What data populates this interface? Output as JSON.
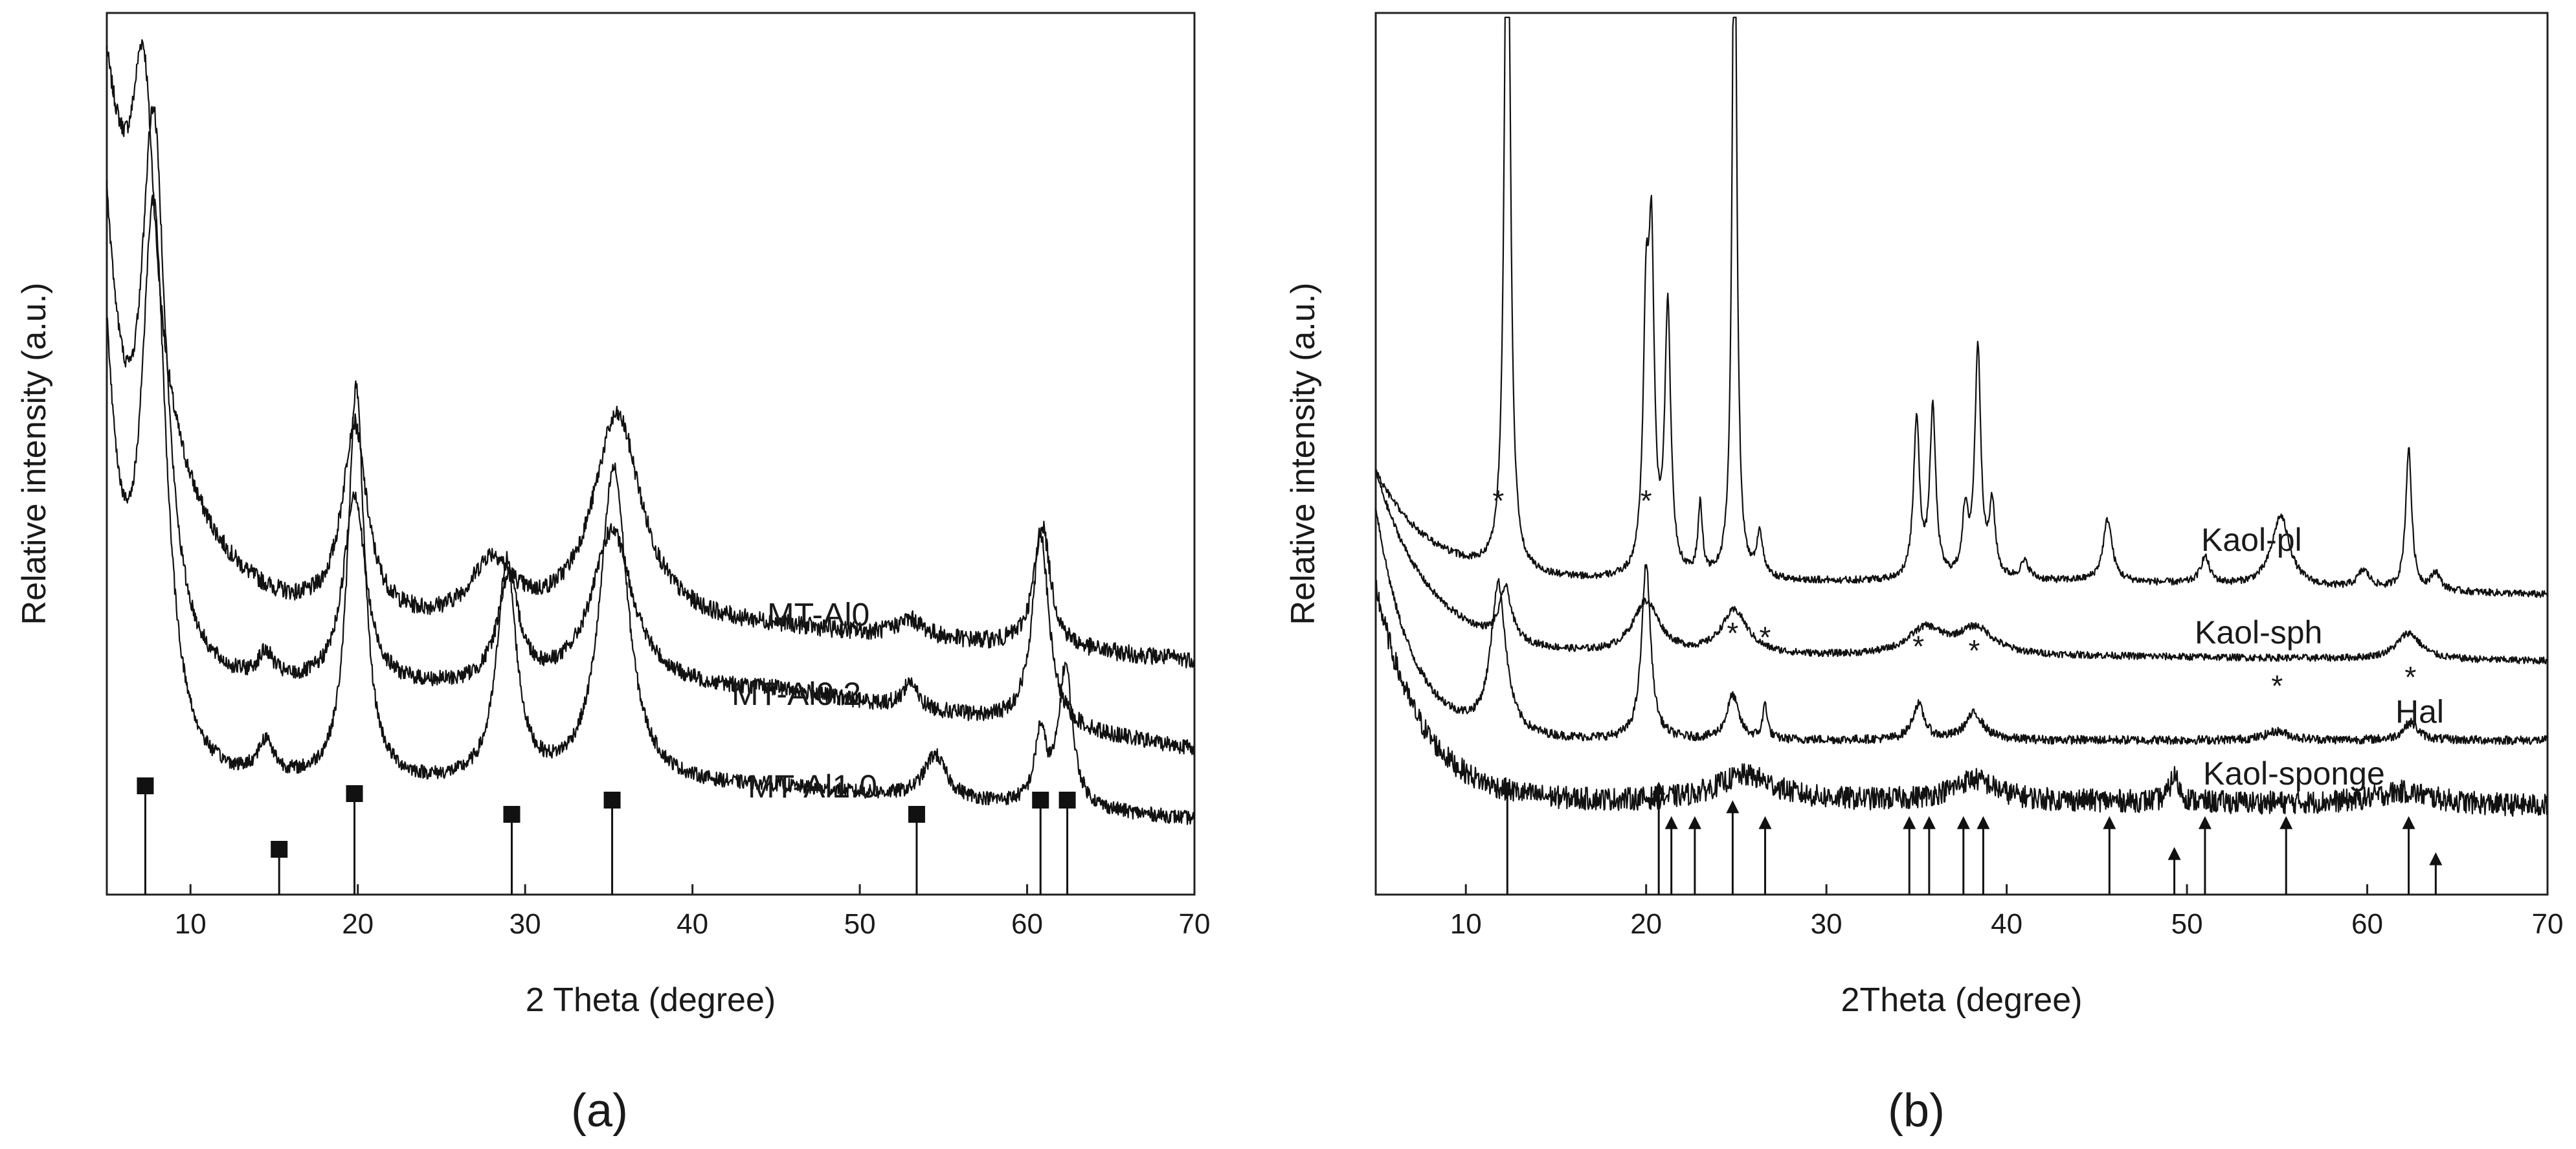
{
  "figure": {
    "panel_a_label": "(a)",
    "panel_b_label": "(b)"
  },
  "chart_data": [
    {
      "type": "line",
      "panel": "a",
      "xlabel": "2 Theta (degree)",
      "ylabel": "Relative intensity (a.u.)",
      "xlim": [
        5,
        70
      ],
      "x_ticks": [
        10,
        20,
        30,
        40,
        50,
        60,
        70
      ],
      "series": [
        {
          "name": "MT-Al0",
          "baseline": 0.3,
          "start": 0.92,
          "decay": 3.5,
          "end": 0.265,
          "noise": 0.01,
          "peaks": [
            [
              7.2,
              0.33,
              0.8
            ],
            [
              19.8,
              0.22,
              0.9
            ],
            [
              28.0,
              0.07,
              1.5
            ],
            [
              35.5,
              0.24,
              1.8
            ],
            [
              53.0,
              0.02,
              1.0
            ],
            [
              60.9,
              0.14,
              0.6
            ]
          ]
        },
        {
          "name": "MT-Al0.2",
          "baseline": 0.23,
          "start": 0.75,
          "decay": 1.5,
          "end": 0.165,
          "noise": 0.009,
          "peaks": [
            [
              7.8,
              0.58,
              0.9
            ],
            [
              14.5,
              0.03,
              0.6
            ],
            [
              19.8,
              0.22,
              0.8
            ],
            [
              29.0,
              0.12,
              0.8
            ],
            [
              35.2,
              0.18,
              1.5
            ],
            [
              53.0,
              0.03,
              0.5
            ],
            [
              60.8,
              0.22,
              0.6
            ]
          ]
        },
        {
          "name": "MT-Al1.0",
          "baseline": 0.12,
          "start": 0.6,
          "decay": 1.2,
          "end": 0.085,
          "noise": 0.008,
          "peaks": [
            [
              7.8,
              0.62,
              0.9
            ],
            [
              14.5,
              0.04,
              0.6
            ],
            [
              19.9,
              0.45,
              0.6
            ],
            [
              28.9,
              0.25,
              0.7
            ],
            [
              35.3,
              0.36,
              1.0
            ],
            [
              54.5,
              0.05,
              0.8
            ],
            [
              60.8,
              0.08,
              0.4
            ],
            [
              62.3,
              0.16,
              0.5
            ]
          ]
        }
      ],
      "reference_lines": [
        {
          "x": 7.3,
          "h": 0.84
        },
        {
          "x": 15.3,
          "h": 0.35
        },
        {
          "x": 19.8,
          "h": 0.78
        },
        {
          "x": 29.2,
          "h": 0.62
        },
        {
          "x": 35.2,
          "h": 0.73
        },
        {
          "x": 53.4,
          "h": 0.62
        },
        {
          "x": 60.8,
          "h": 0.73
        },
        {
          "x": 62.4,
          "h": 0.73
        }
      ]
    },
    {
      "type": "line",
      "panel": "b",
      "xlabel": "2Theta (degree)",
      "ylabel": "Relative intensity (a.u.)",
      "xlim": [
        5,
        70
      ],
      "x_ticks": [
        10,
        20,
        30,
        40,
        50,
        60,
        70
      ],
      "series": [
        {
          "name": "Kaol-pl",
          "baseline": 0.355,
          "start": 0.48,
          "decay": 3.0,
          "end": 0.34,
          "noise": 0.004,
          "peaks": [
            [
              12.3,
              0.95,
              0.18
            ],
            [
              20.0,
              0.28,
              0.2
            ],
            [
              20.3,
              0.33,
              0.18
            ],
            [
              21.2,
              0.3,
              0.2
            ],
            [
              23.0,
              0.08,
              0.15
            ],
            [
              24.9,
              0.85,
              0.15
            ],
            [
              26.3,
              0.05,
              0.2
            ],
            [
              35.0,
              0.18,
              0.2
            ],
            [
              35.9,
              0.19,
              0.2
            ],
            [
              37.7,
              0.07,
              0.2
            ],
            [
              38.4,
              0.26,
              0.2
            ],
            [
              39.2,
              0.08,
              0.2
            ],
            [
              41.0,
              0.02,
              0.3
            ],
            [
              45.6,
              0.07,
              0.3
            ],
            [
              51.0,
              0.03,
              0.3
            ],
            [
              55.2,
              0.08,
              0.6
            ],
            [
              59.8,
              0.02,
              0.4
            ],
            [
              62.3,
              0.16,
              0.2
            ],
            [
              63.8,
              0.02,
              0.3
            ]
          ]
        },
        {
          "name": "Kaol-sph",
          "baseline": 0.27,
          "start": 0.48,
          "decay": 3.0,
          "end": 0.265,
          "noise": 0.004,
          "peaks": [
            [
              12.2,
              0.06,
              0.4
            ],
            [
              20.0,
              0.06,
              0.9
            ],
            [
              24.9,
              0.05,
              0.9
            ],
            [
              35.5,
              0.03,
              1.2
            ],
            [
              38.3,
              0.03,
              1.2
            ],
            [
              62.3,
              0.03,
              0.8
            ]
          ]
        },
        {
          "name": "Hal",
          "baseline": 0.175,
          "start": 0.44,
          "decay": 2.0,
          "end": 0.175,
          "noise": 0.005,
          "peaks": [
            [
              11.8,
              0.17,
              0.5
            ],
            [
              20.0,
              0.2,
              0.3
            ],
            [
              24.8,
              0.05,
              0.4
            ],
            [
              26.6,
              0.04,
              0.15
            ],
            [
              35.1,
              0.04,
              0.4
            ],
            [
              38.2,
              0.03,
              0.6
            ],
            [
              55.0,
              0.01,
              0.8
            ],
            [
              62.4,
              0.02,
              0.5
            ]
          ]
        },
        {
          "name": "Kaol-sponge",
          "baseline": 0.105,
          "start": 0.35,
          "decay": 2.5,
          "end": 0.1,
          "noise": 0.013,
          "peaks": [
            [
              25.5,
              0.03,
              2.0
            ],
            [
              38.2,
              0.025,
              1.5
            ],
            [
              49.3,
              0.03,
              0.3
            ],
            [
              62.0,
              0.015,
              2.0
            ]
          ]
        }
      ],
      "annotations": {
        "asterisk_symbol": "*",
        "asterisk_positions": [
          {
            "x": 11.8,
            "y": 0.435
          },
          {
            "x": 20.0,
            "y": 0.435
          },
          {
            "x": 24.8,
            "y": 0.285
          },
          {
            "x": 26.6,
            "y": 0.28
          },
          {
            "x": 35.1,
            "y": 0.27
          },
          {
            "x": 38.2,
            "y": 0.265
          },
          {
            "x": 55.0,
            "y": 0.225
          },
          {
            "x": 62.4,
            "y": 0.235
          }
        ],
        "arrows": [
          {
            "x": 12.3,
            "h": 0.128
          },
          {
            "x": 20.7,
            "h": 0.128
          },
          {
            "x": 21.4,
            "h": 0.089
          },
          {
            "x": 22.7,
            "h": 0.089
          },
          {
            "x": 24.8,
            "h": 0.107
          },
          {
            "x": 26.6,
            "h": 0.089
          },
          {
            "x": 34.6,
            "h": 0.089
          },
          {
            "x": 35.7,
            "h": 0.089
          },
          {
            "x": 37.6,
            "h": 0.089
          },
          {
            "x": 38.7,
            "h": 0.089
          },
          {
            "x": 45.7,
            "h": 0.089
          },
          {
            "x": 49.3,
            "h": 0.054
          },
          {
            "x": 51.0,
            "h": 0.089
          },
          {
            "x": 55.5,
            "h": 0.089
          },
          {
            "x": 62.3,
            "h": 0.089
          },
          {
            "x": 63.8,
            "h": 0.048
          }
        ]
      }
    }
  ]
}
